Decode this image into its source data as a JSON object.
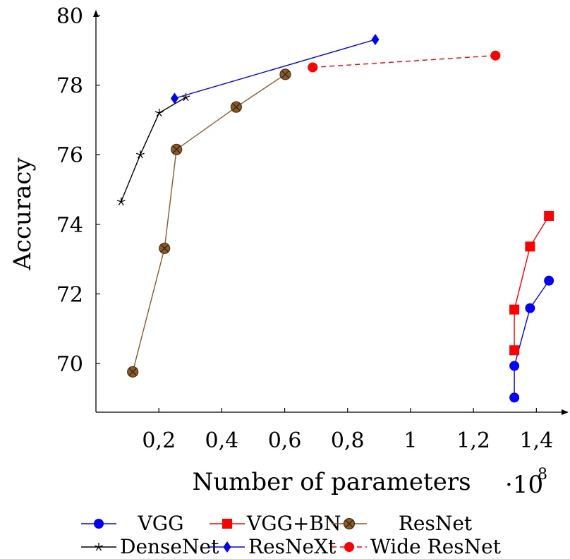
{
  "chart_data": {
    "type": "line",
    "xlabel": "Number of parameters",
    "ylabel": "Accuracy",
    "x_multiplier": "·10",
    "x_multiplier_exp": "8",
    "xlim": [
      0.0,
      1.48
    ],
    "ylim": [
      68.6,
      80.0
    ],
    "xticks": [
      0.2,
      0.4,
      0.6,
      0.8,
      1.0,
      1.2,
      1.4
    ],
    "xtick_labels": [
      "0,2",
      "0,4",
      "0,6",
      "0,8",
      "1",
      "1,2",
      "1,4"
    ],
    "yticks": [
      70,
      72,
      74,
      76,
      78,
      80
    ],
    "ytick_labels": [
      "70",
      "72",
      "74",
      "76",
      "78",
      "80"
    ],
    "grid": false,
    "legend": "bottom",
    "series": [
      {
        "name": "VGG",
        "color": "#0000ff",
        "marker": "circle",
        "dash": false,
        "x": [
          1.33,
          1.33,
          1.38,
          1.44
        ],
        "y": [
          69.02,
          69.93,
          71.59,
          72.38
        ]
      },
      {
        "name": "VGG+BN",
        "color": "#ff0000",
        "marker": "square",
        "dash": false,
        "x": [
          1.33,
          1.33,
          1.38,
          1.44
        ],
        "y": [
          70.38,
          71.55,
          73.36,
          74.24
        ]
      },
      {
        "name": "ResNet",
        "color": "#8b5a2b",
        "marker": "circle-x",
        "dash": false,
        "x": [
          0.117,
          0.218,
          0.256,
          0.446,
          0.602
        ],
        "y": [
          69.76,
          73.31,
          76.15,
          77.37,
          78.31
        ]
      },
      {
        "name": "DenseNet",
        "color": "#000000",
        "marker": "star",
        "dash": false,
        "x": [
          0.08,
          0.141,
          0.201,
          0.286
        ],
        "y": [
          74.65,
          76.0,
          77.2,
          77.65
        ]
      },
      {
        "name": "ResNeXt",
        "color": "#0000ff",
        "marker": "diamond",
        "dash": false,
        "x": [
          0.25,
          0.888
        ],
        "y": [
          77.62,
          79.31
        ]
      },
      {
        "name": "Wide ResNet",
        "color": "#ff0000",
        "marker": "circle",
        "dash": true,
        "x": [
          0.689,
          1.27
        ],
        "y": [
          78.51,
          78.85
        ]
      }
    ]
  }
}
